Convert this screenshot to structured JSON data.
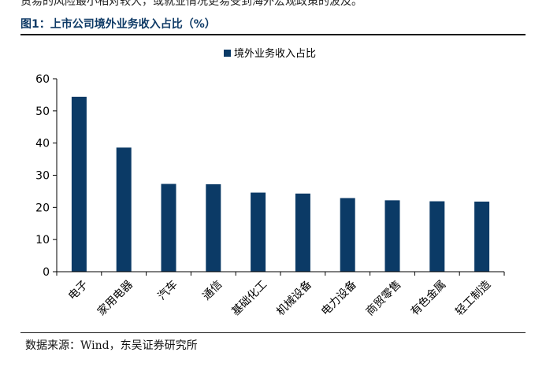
{
  "page": {
    "top_text": "贸易的风险最小相对较大，或就业情况更易受到海外宏观政策的波及。",
    "figure_title": "图1：上市公司境外业务收入占比（%）",
    "source": "数据来源：Wind，东吴证券研究所"
  },
  "colors": {
    "bar": "#0b3a66",
    "axis": "#000000",
    "title": "#0e3a66"
  },
  "chart_data": {
    "type": "bar",
    "categories": [
      "电子",
      "家用电器",
      "汽车",
      "通信",
      "基础化工",
      "机械设备",
      "电力设备",
      "商贸零售",
      "有色金属",
      "轻工制造"
    ],
    "series": [
      {
        "name": "境外业务收入占比",
        "values": [
          54.4,
          38.6,
          27.3,
          27.2,
          24.6,
          24.3,
          22.9,
          22.2,
          21.9,
          21.8
        ]
      }
    ],
    "ylim": [
      0,
      60
    ],
    "yticks": [
      0,
      10,
      20,
      30,
      40,
      50,
      60
    ],
    "grid": false,
    "legend": "top-center"
  }
}
